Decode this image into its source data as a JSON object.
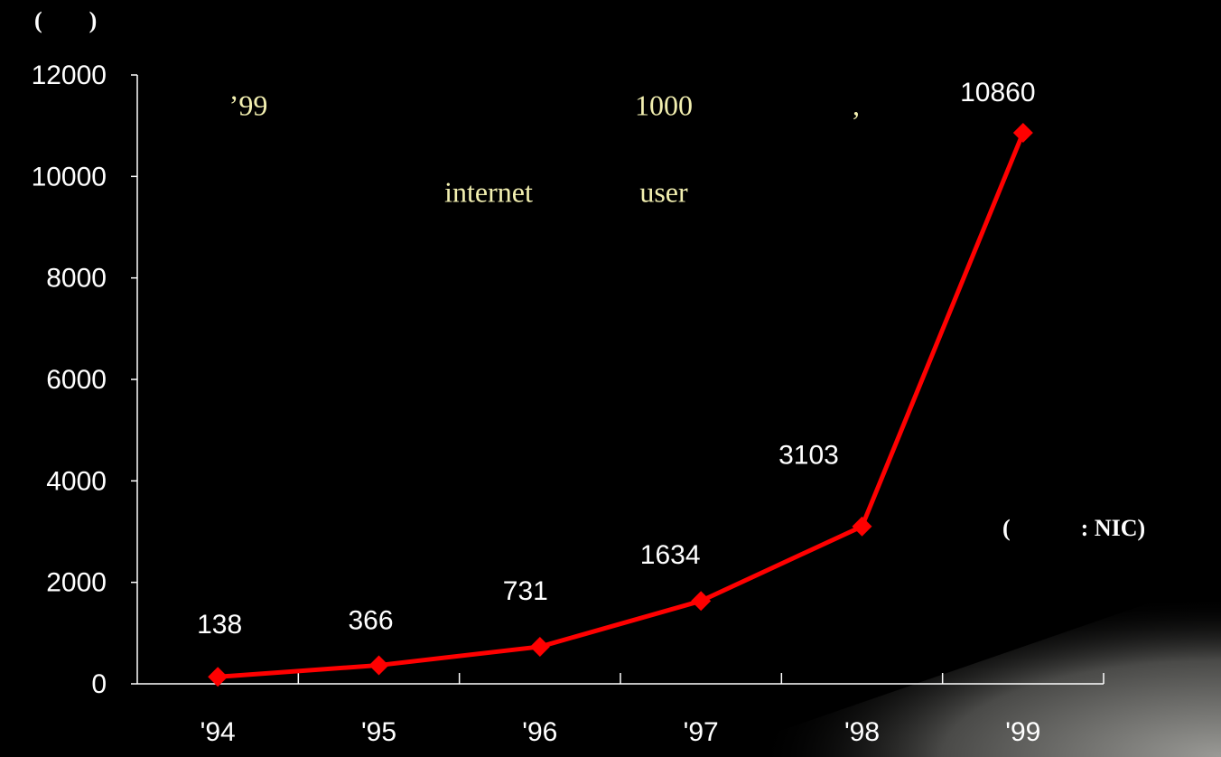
{
  "chart_data": {
    "type": "line",
    "unit_label": "(        )",
    "annotations": [
      "’99",
      "1000",
      ",",
      "internet",
      "user"
    ],
    "source": "(            : NIC)",
    "categories": [
      "'94",
      "'95",
      "'96",
      "'97",
      "'98",
      "'99"
    ],
    "series": [
      {
        "color": "#ff0000",
        "values": [
          138,
          366,
          731,
          1634,
          3103,
          10860
        ]
      }
    ],
    "ylim": [
      0,
      12000
    ],
    "yticks": [
      0,
      2000,
      4000,
      6000,
      8000,
      10000,
      12000
    ]
  }
}
